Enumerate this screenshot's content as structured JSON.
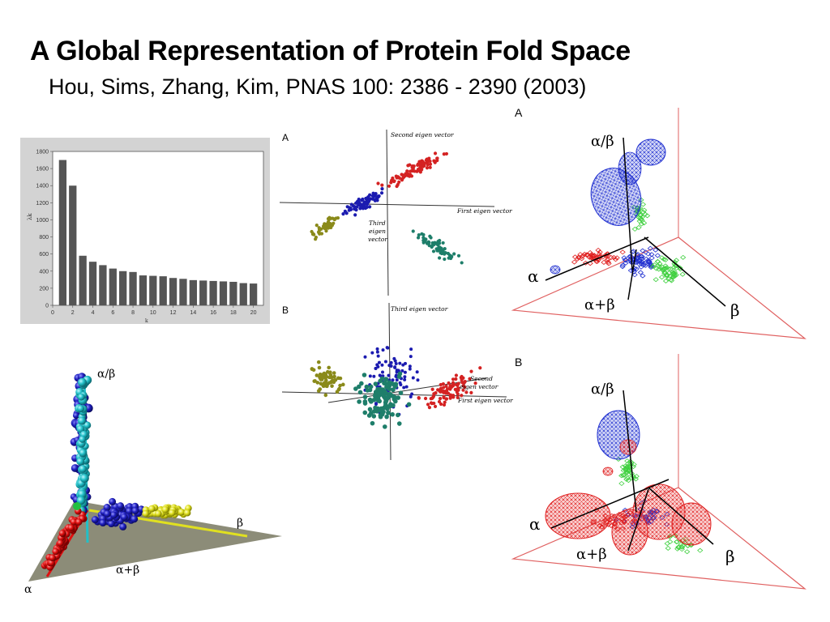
{
  "slide": {
    "title": "A Global Representation of Protein Fold Space",
    "subtitle": "Hou, Sims, Zhang, Kim, PNAS 100: 2386 - 2390 (2003)"
  },
  "chart_data": [
    {
      "type": "bar",
      "categories": [
        1,
        2,
        3,
        4,
        5,
        6,
        7,
        8,
        9,
        10,
        11,
        12,
        13,
        14,
        15,
        16,
        17,
        18,
        19,
        20
      ],
      "values": [
        1700,
        1400,
        580,
        510,
        470,
        430,
        400,
        390,
        350,
        345,
        340,
        320,
        310,
        295,
        290,
        285,
        280,
        275,
        260,
        255
      ],
      "xlabel": "k",
      "ylabel": "λk",
      "ylim": [
        0,
        1800
      ],
      "yticks": [
        0,
        200,
        400,
        600,
        800,
        1000,
        1200,
        1400,
        1600,
        1800
      ],
      "xticks": [
        0,
        2,
        4,
        6,
        8,
        10,
        12,
        14,
        16,
        18,
        20
      ]
    },
    {
      "type": "scatter",
      "panel_label": "A",
      "axis_labels": [
        "Second eigen vector",
        "First eigen vector",
        "Third",
        "eigen",
        "vector"
      ],
      "colors": {
        "red": "#d42222",
        "blue": "#1b1bb0",
        "olive": "#8a8a1a",
        "teal": "#1e7e6a"
      }
    },
    {
      "type": "scatter",
      "panel_label": "B",
      "axis_labels": [
        "Third eigen vector",
        "Second",
        "eigen vector",
        "First eigen vector"
      ]
    },
    {
      "type": "scatter",
      "labels": {
        "ab_slash": "α/β",
        "beta": "β",
        "a_plus_b": "α+β",
        "alpha": "α"
      },
      "colors": {
        "cyan": "#22c0c8",
        "blue": "#2020c0",
        "yellow": "#e0e020",
        "red": "#e01010",
        "plane": "#8c8c78"
      }
    },
    {
      "type": "scatter",
      "panel_label": "A",
      "labels": {
        "ab_slash": "α/β",
        "alpha": "α",
        "a_plus_b": "α+β",
        "beta": "β"
      }
    },
    {
      "type": "scatter",
      "panel_label": "B",
      "labels": {
        "ab_slash": "α/β",
        "alpha": "α",
        "a_plus_b": "α+β",
        "beta": "β"
      }
    }
  ]
}
